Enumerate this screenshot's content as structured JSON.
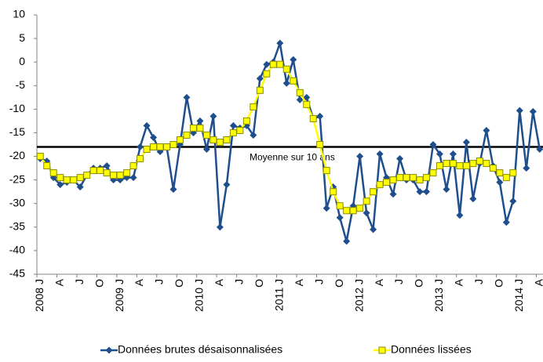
{
  "chart_data": {
    "type": "line",
    "categories": [
      "2008 J",
      null,
      null,
      "A",
      null,
      null,
      "J",
      null,
      null,
      "O",
      null,
      null,
      "2009 J",
      null,
      null,
      "A",
      null,
      null,
      "J",
      null,
      null,
      "O",
      null,
      null,
      "2010 J",
      null,
      null,
      "A",
      null,
      null,
      "J",
      null,
      null,
      "O",
      null,
      null,
      "2011 J",
      null,
      null,
      "A",
      null,
      null,
      "J",
      null,
      null,
      "O",
      null,
      null,
      "2012 J",
      null,
      null,
      "A",
      null,
      null,
      "J",
      null,
      null,
      "O",
      null,
      null,
      "2013 J",
      null,
      null,
      "A",
      null,
      null,
      "J",
      null,
      null,
      "O",
      null,
      null,
      "2014 J",
      null,
      null,
      "A"
    ],
    "series": [
      {
        "name": "Données brutes désaisonnalisées",
        "color": "#1f4e8c",
        "marker": "diamond",
        "values": [
          -20.5,
          -21,
          -24.5,
          -26,
          -25.5,
          -25,
          -26.5,
          -24,
          -22.5,
          -22.5,
          -22,
          -25,
          -25,
          -24.5,
          -24.5,
          -18,
          -13.5,
          -16,
          -19,
          -18,
          -27,
          -17.5,
          -7.5,
          -15,
          -12.5,
          -18.5,
          -11.5,
          -35,
          -26,
          -13.5,
          -14,
          -13.5,
          -15.5,
          -3.5,
          -0.5,
          0,
          4,
          -4.5,
          0.5,
          -8,
          -7.5,
          -12,
          -11.5,
          -31,
          -26.5,
          -33,
          -38,
          -30.5,
          -20,
          -32,
          -35.5,
          -19.5,
          -24.5,
          -28,
          -20.5,
          -25,
          -25,
          -27.5,
          -27.5,
          -17.5,
          -19.5,
          -27,
          -19.5,
          -32.5,
          -17,
          -29,
          -21.5,
          -14.5,
          -22,
          -25.5,
          -34,
          -29.5,
          -10.3,
          -22.5,
          -10.5,
          -18.5
        ]
      },
      {
        "name": "Données lissées",
        "color": "#ffff00",
        "marker": "square",
        "values": [
          -20,
          -22,
          -23.5,
          -24.5,
          -25,
          -25,
          -24.5,
          -24,
          -23,
          -23,
          -23.5,
          -24,
          -24,
          -23.5,
          -22,
          -20.5,
          -18.5,
          -18,
          -18,
          -18,
          -17.5,
          -16.5,
          -15.5,
          -14,
          -14,
          -15.5,
          -16.5,
          -17,
          -16.5,
          -15,
          -14.5,
          -12.5,
          -9.5,
          -6,
          -2.5,
          -0.5,
          -0.5,
          -1.5,
          -4,
          -6.5,
          -9,
          -12,
          -17.5,
          -23,
          -27.5,
          -30.5,
          -31.5,
          -31.5,
          -31,
          -29.5,
          -27.5,
          -26,
          -25.5,
          -25,
          -24.5,
          -24.5,
          -24.5,
          -25,
          -24.5,
          -23.5,
          -22,
          -21.5,
          -21.5,
          -22,
          -22,
          -21.5,
          -21,
          -21.5,
          -22.5,
          -23.5,
          -24.5,
          -23.5,
          null,
          null,
          null,
          null
        ]
      }
    ],
    "reference": {
      "value": -18,
      "label": "Moyenne sur 10 ans"
    },
    "ylim": [
      -45,
      10
    ],
    "yticks": [
      -45,
      -40,
      -35,
      -30,
      -25,
      -20,
      -15,
      -10,
      -5,
      0,
      5,
      10
    ],
    "legend": "bottom"
  }
}
